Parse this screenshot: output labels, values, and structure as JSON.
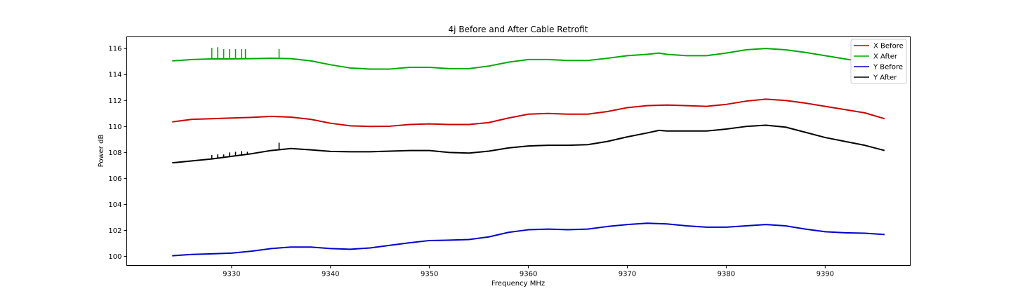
{
  "chart_data": {
    "type": "line",
    "title": "4j Before and After Cable Retrofit",
    "xlabel": "Frequency MHz",
    "ylabel": "Power dB",
    "xlim": [
      9319.4,
      9398.6
    ],
    "ylim": [
      99.3,
      116.9
    ],
    "xticks": [
      9330,
      9340,
      9350,
      9360,
      9370,
      9380,
      9390
    ],
    "yticks": [
      100,
      102,
      104,
      106,
      108,
      110,
      112,
      114,
      116
    ],
    "grid": false,
    "legend_position": "top-right",
    "series": [
      {
        "name": "X Before",
        "color": "#cc0000",
        "x": [
          9324,
          9326,
          9328,
          9330,
          9332,
          9334,
          9336,
          9338,
          9340,
          9342,
          9344,
          9346,
          9348,
          9350,
          9352,
          9354,
          9356,
          9358,
          9360,
          9362,
          9364,
          9366,
          9368,
          9370,
          9372,
          9374,
          9376,
          9378,
          9380,
          9382,
          9384,
          9386,
          9388,
          9390,
          9392,
          9394,
          9396
        ],
        "y": [
          110.35,
          110.55,
          110.6,
          110.65,
          110.7,
          110.78,
          110.72,
          110.55,
          110.25,
          110.05,
          110.0,
          110.02,
          110.15,
          110.2,
          110.15,
          110.15,
          110.3,
          110.65,
          110.95,
          111.0,
          110.95,
          110.95,
          111.15,
          111.45,
          111.6,
          111.65,
          111.6,
          111.55,
          111.7,
          111.95,
          112.1,
          112.0,
          111.8,
          111.55,
          111.3,
          111.05,
          110.6
        ]
      },
      {
        "name": "X After",
        "color": "#00aa00",
        "x": [
          9324,
          9326,
          9328,
          9330,
          9332,
          9334,
          9336,
          9338,
          9340,
          9342,
          9344,
          9346,
          9348,
          9350,
          9352,
          9354,
          9356,
          9358,
          9360,
          9362,
          9364,
          9366,
          9368,
          9370,
          9372,
          9373.2,
          9374,
          9376,
          9378,
          9380,
          9382,
          9384,
          9386,
          9388,
          9390,
          9392,
          9394,
          9396
        ],
        "y": [
          115.05,
          115.15,
          115.2,
          115.2,
          115.22,
          115.25,
          115.22,
          115.05,
          114.75,
          114.5,
          114.42,
          114.42,
          114.55,
          114.55,
          114.45,
          114.45,
          114.65,
          114.95,
          115.15,
          115.15,
          115.08,
          115.08,
          115.25,
          115.45,
          115.55,
          115.65,
          115.55,
          115.45,
          115.45,
          115.65,
          115.9,
          116.0,
          115.9,
          115.7,
          115.45,
          115.2,
          114.95,
          114.55
        ],
        "spikes": [
          [
            9328.0,
            116.05
          ],
          [
            9328.6,
            116.1
          ],
          [
            9329.2,
            115.95
          ],
          [
            9329.8,
            115.95
          ],
          [
            9330.4,
            115.95
          ],
          [
            9331.0,
            115.95
          ],
          [
            9331.4,
            115.95
          ],
          [
            9334.8,
            115.95
          ]
        ]
      },
      {
        "name": "Y Before",
        "color": "#0000cc",
        "x": [
          9324,
          9326,
          9328,
          9330,
          9332,
          9334,
          9336,
          9338,
          9340,
          9342,
          9344,
          9346,
          9348,
          9350,
          9352,
          9354,
          9356,
          9358,
          9360,
          9362,
          9364,
          9366,
          9368,
          9370,
          9372,
          9374,
          9376,
          9378,
          9380,
          9382,
          9384,
          9386,
          9388,
          9390,
          9392,
          9394,
          9396
        ],
        "y": [
          100.05,
          100.15,
          100.2,
          100.25,
          100.4,
          100.6,
          100.72,
          100.72,
          100.6,
          100.55,
          100.65,
          100.85,
          101.05,
          101.22,
          101.25,
          101.3,
          101.5,
          101.85,
          102.05,
          102.1,
          102.05,
          102.1,
          102.3,
          102.45,
          102.55,
          102.5,
          102.35,
          102.25,
          102.25,
          102.35,
          102.45,
          102.35,
          102.1,
          101.9,
          101.82,
          101.78,
          101.68
        ]
      },
      {
        "name": "Y After",
        "color": "#000000",
        "x": [
          9324,
          9326,
          9328,
          9330,
          9332,
          9334,
          9336,
          9338,
          9340,
          9342,
          9344,
          9346,
          9348,
          9350,
          9352,
          9354,
          9356,
          9358,
          9360,
          9362,
          9364,
          9366,
          9368,
          9370,
          9372,
          9373.2,
          9374,
          9376,
          9378,
          9380,
          9382,
          9384,
          9386,
          9388,
          9390,
          9392,
          9394,
          9396
        ],
        "y": [
          107.2,
          107.35,
          107.5,
          107.7,
          107.9,
          108.15,
          108.3,
          108.2,
          108.08,
          108.05,
          108.05,
          108.1,
          108.15,
          108.15,
          108.0,
          107.95,
          108.1,
          108.35,
          108.5,
          108.55,
          108.55,
          108.6,
          108.85,
          109.2,
          109.5,
          109.7,
          109.65,
          109.65,
          109.65,
          109.8,
          110.0,
          110.1,
          109.95,
          109.55,
          109.15,
          108.85,
          108.55,
          108.15
        ],
        "spikes": [
          [
            9328.0,
            107.8
          ],
          [
            9328.6,
            107.85
          ],
          [
            9329.2,
            107.85
          ],
          [
            9329.8,
            108.0
          ],
          [
            9330.4,
            108.05
          ],
          [
            9331.0,
            108.1
          ],
          [
            9331.6,
            108.05
          ],
          [
            9334.8,
            108.75
          ]
        ]
      }
    ]
  }
}
